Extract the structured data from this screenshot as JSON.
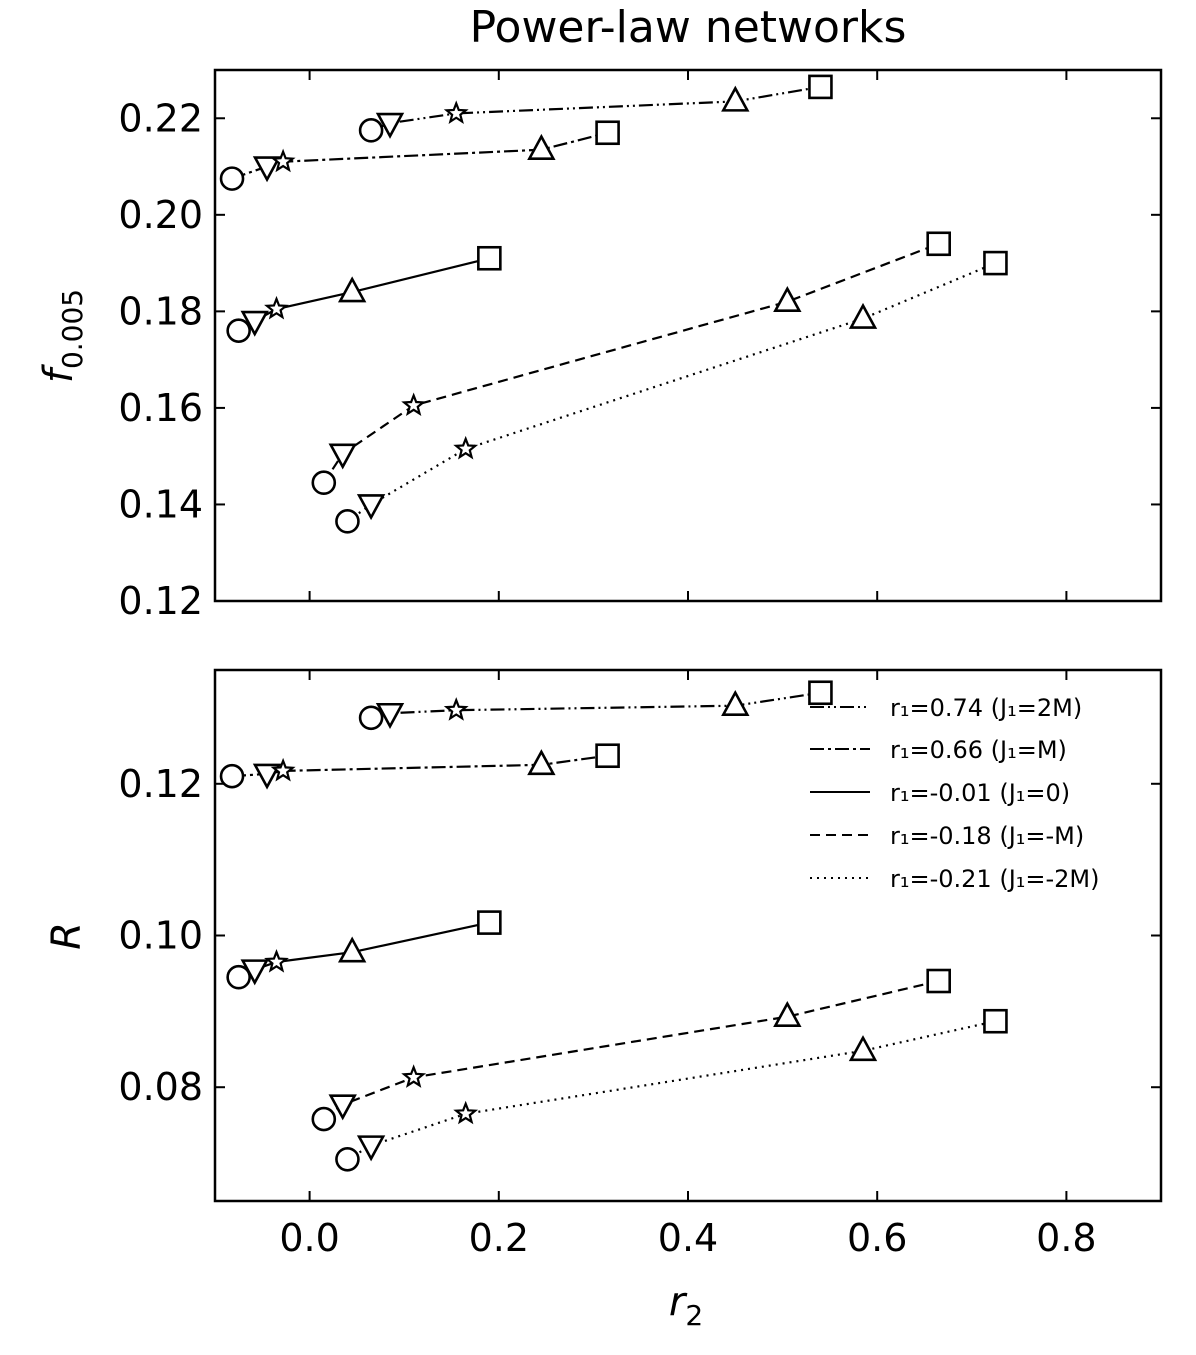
{
  "chart_data": [
    {
      "type": "line",
      "title": "Power-law networks",
      "xlabel": "",
      "ylabel_main": "f",
      "ylabel_sub": "0.005",
      "xlim": [
        -0.1,
        0.9
      ],
      "ylim": [
        0.12,
        0.23
      ],
      "xticks": [
        0.0,
        0.2,
        0.4,
        0.6,
        0.8
      ],
      "yticks": [
        0.12,
        0.14,
        0.16,
        0.18,
        0.2,
        0.22
      ],
      "ytick_labels": [
        "0.12",
        "0.14",
        "0.16",
        "0.18",
        "0.20",
        "0.22"
      ],
      "series": [
        {
          "name": "r1=0.74 (J1=2M)",
          "style": "dashdotdot",
          "x": [
            0.065,
            0.085,
            0.155,
            0.45,
            0.54
          ],
          "y": [
            0.2175,
            0.219,
            0.221,
            0.2235,
            0.2265
          ]
        },
        {
          "name": "r1=0.66 (J1=M)",
          "style": "dashdot",
          "x": [
            -0.082,
            -0.045,
            -0.028,
            0.245,
            0.315
          ],
          "y": [
            0.2075,
            0.21,
            0.211,
            0.2135,
            0.217
          ]
        },
        {
          "name": "r1=-0.01 (J1=0)",
          "style": "solid",
          "x": [
            -0.075,
            -0.058,
            -0.035,
            0.045,
            0.19
          ],
          "y": [
            0.176,
            0.178,
            0.1805,
            0.184,
            0.191
          ]
        },
        {
          "name": "r1=-0.18 (J1=-M)",
          "style": "dashed",
          "x": [
            0.015,
            0.035,
            0.11,
            0.505,
            0.665
          ],
          "y": [
            0.1445,
            0.1505,
            0.1605,
            0.182,
            0.194
          ]
        },
        {
          "name": "r1=-0.21 (J1=-2M)",
          "style": "dotted",
          "x": [
            0.04,
            0.065,
            0.165,
            0.585,
            0.725
          ],
          "y": [
            0.1365,
            0.14,
            0.1515,
            0.1785,
            0.19
          ]
        }
      ]
    },
    {
      "type": "line",
      "title": "",
      "xlabel_main": "r",
      "xlabel_sub": "2",
      "ylabel_main": "R",
      "ylabel_sub": "",
      "xlim": [
        -0.1,
        0.9
      ],
      "ylim": [
        0.065,
        0.135
      ],
      "xticks": [
        0.0,
        0.2,
        0.4,
        0.6,
        0.8
      ],
      "xtick_labels": [
        "0.0",
        "0.2",
        "0.4",
        "0.6",
        "0.8"
      ],
      "yticks": [
        0.08,
        0.1,
        0.12
      ],
      "ytick_labels": [
        "0.08",
        "0.10",
        "0.12"
      ],
      "legend_position": "top-right",
      "legend_entries": [
        {
          "label": "r₁=0.74 (J₁=2M)",
          "style": "dashdotdot"
        },
        {
          "label": "r₁=0.66 (J₁=M)",
          "style": "dashdot"
        },
        {
          "label": "r₁=-0.01 (J₁=0)",
          "style": "solid"
        },
        {
          "label": "r₁=-0.18 (J₁=-M)",
          "style": "dashed"
        },
        {
          "label": "r₁=-0.21 (J₁=-2M)",
          "style": "dotted"
        }
      ],
      "series": [
        {
          "name": "r1=0.74 (J1=2M)",
          "style": "dashdotdot",
          "x": [
            0.065,
            0.085,
            0.155,
            0.45,
            0.54
          ],
          "y": [
            0.1287,
            0.1293,
            0.1297,
            0.1303,
            0.132
          ]
        },
        {
          "name": "r1=0.66 (J1=M)",
          "style": "dashdot",
          "x": [
            -0.082,
            -0.045,
            -0.028,
            0.245,
            0.315
          ],
          "y": [
            0.121,
            0.1213,
            0.1217,
            0.1225,
            0.1237
          ]
        },
        {
          "name": "r1=-0.01 (J1=0)",
          "style": "solid",
          "x": [
            -0.075,
            -0.058,
            -0.035,
            0.045,
            0.19
          ],
          "y": [
            0.0945,
            0.0955,
            0.0965,
            0.0978,
            0.1017
          ]
        },
        {
          "name": "r1=-0.18 (J1=-M)",
          "style": "dashed",
          "x": [
            0.015,
            0.035,
            0.11,
            0.505,
            0.665
          ],
          "y": [
            0.0758,
            0.0777,
            0.0813,
            0.0893,
            0.094
          ]
        },
        {
          "name": "r1=-0.21 (J1=-2M)",
          "style": "dotted",
          "x": [
            0.04,
            0.065,
            0.165,
            0.585,
            0.725
          ],
          "y": [
            0.0705,
            0.0723,
            0.0765,
            0.0848,
            0.0887
          ]
        }
      ]
    }
  ],
  "marker_sequence": [
    "circle",
    "triangle-down",
    "star",
    "triangle-up",
    "square"
  ],
  "colors": {
    "line": "#000000",
    "background": "#ffffff"
  }
}
